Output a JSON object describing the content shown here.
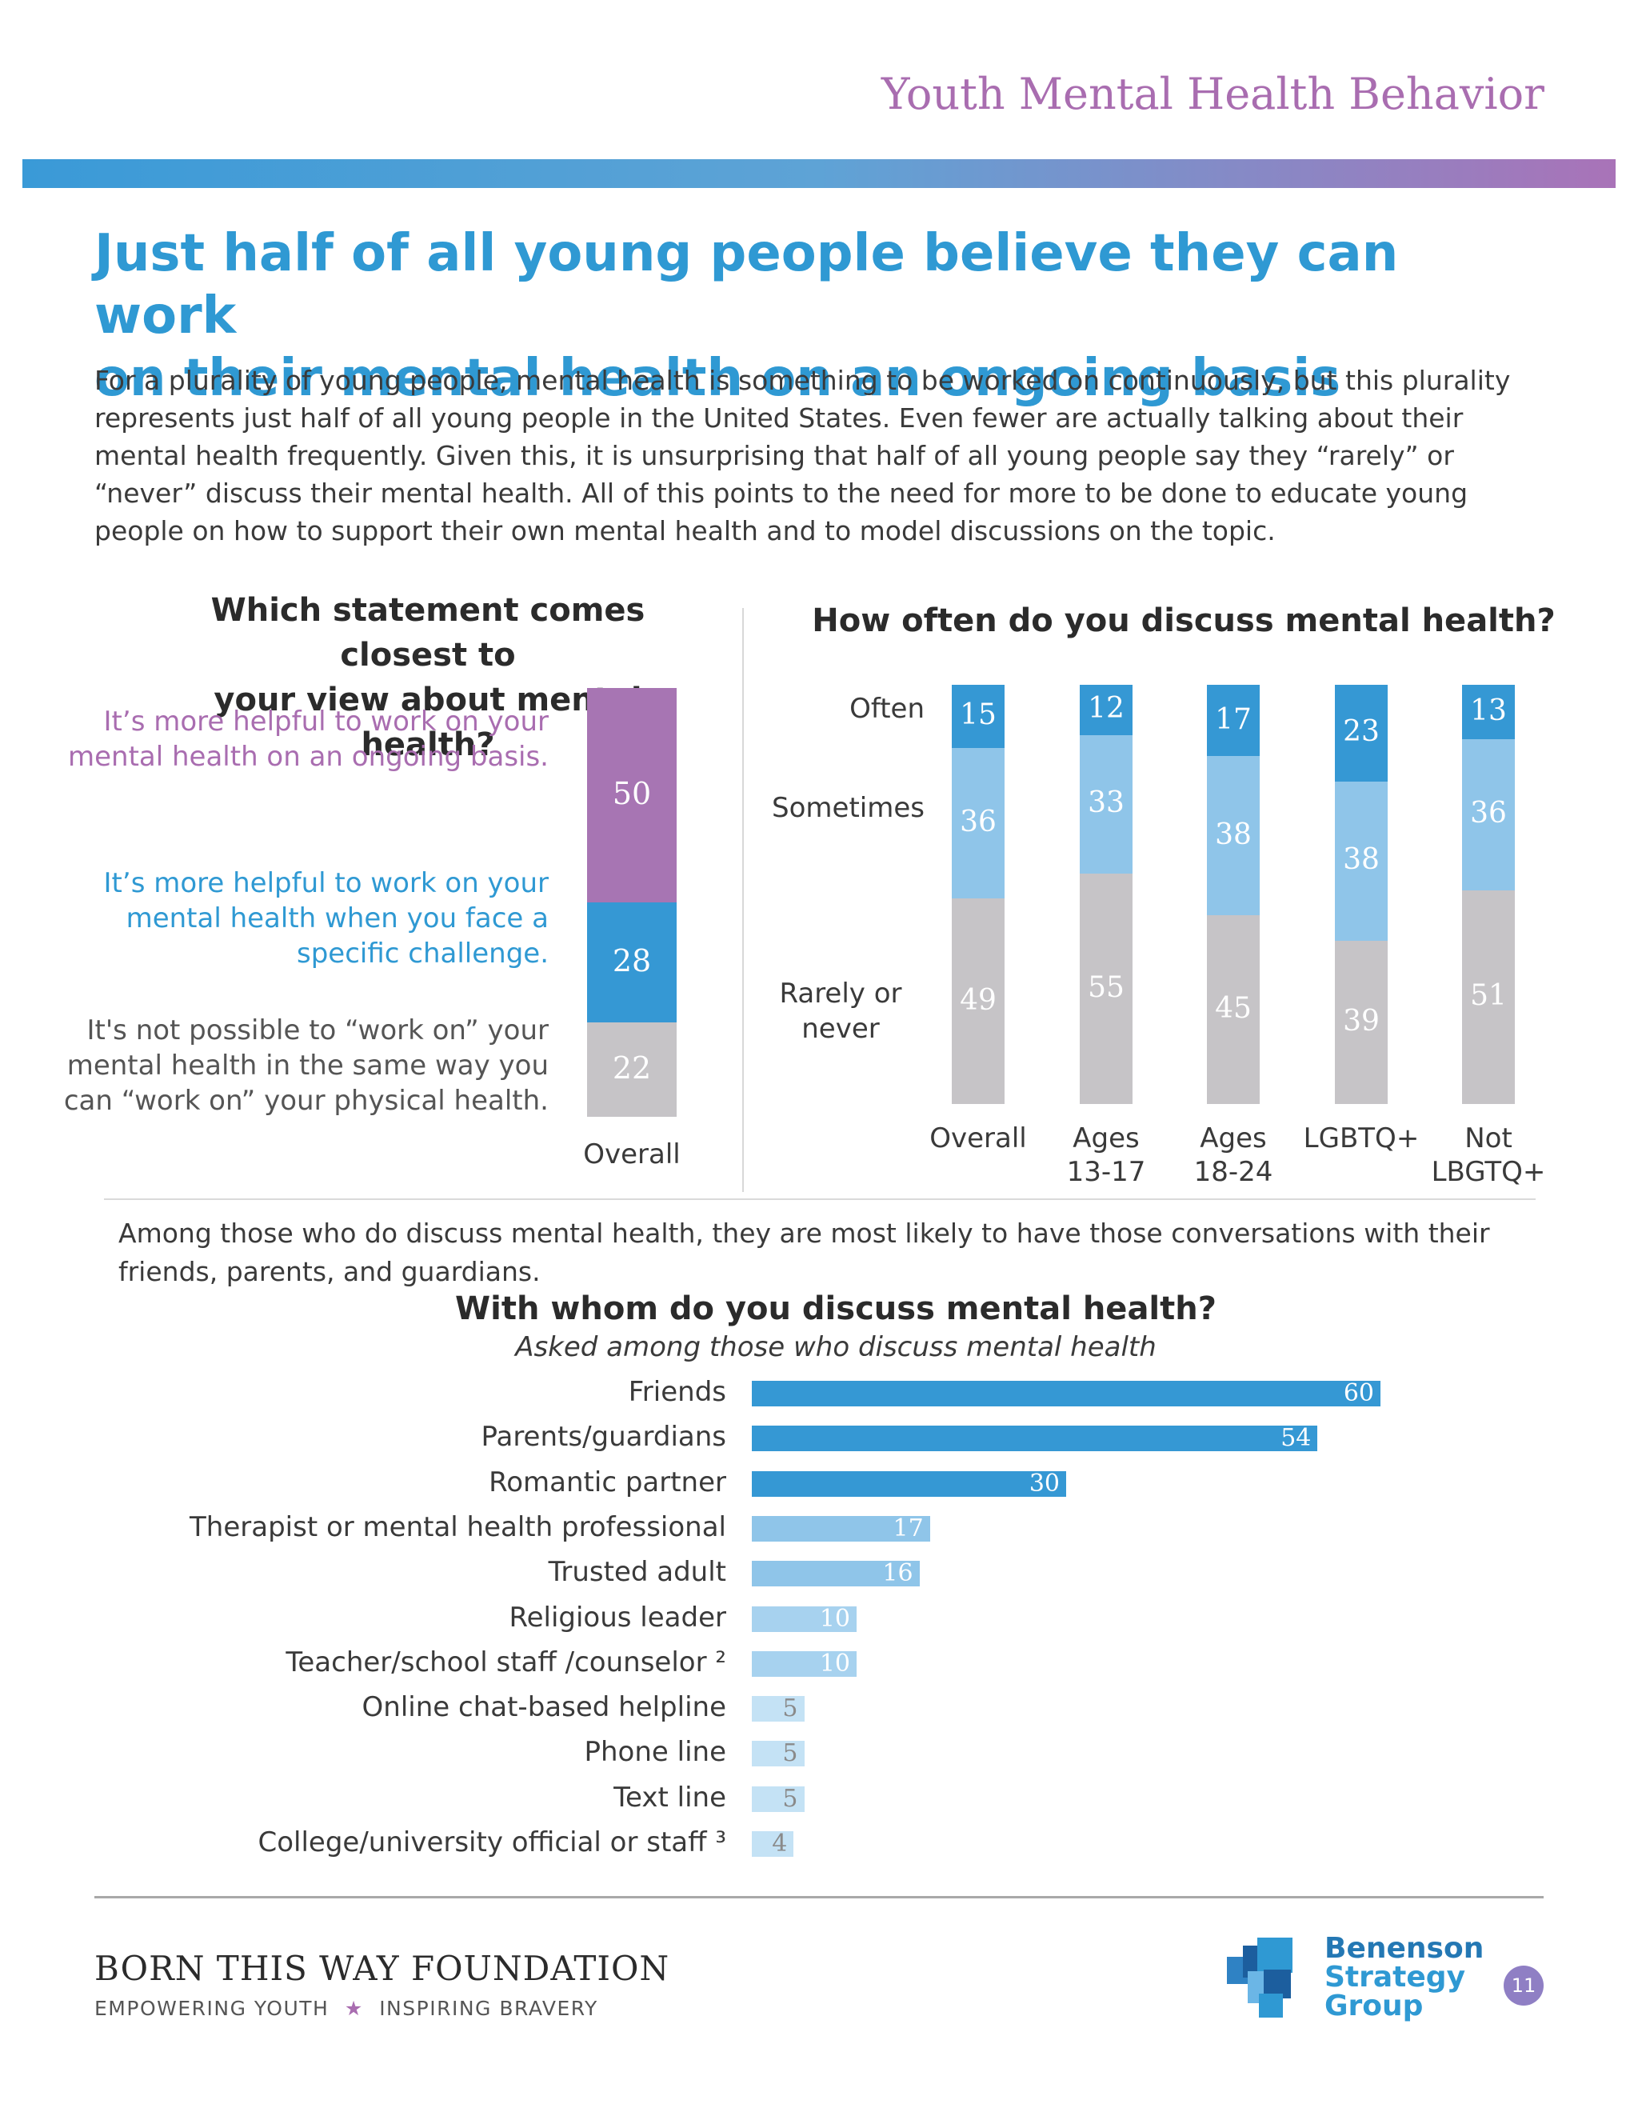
{
  "header": {
    "title": "Youth Mental Health Behavior"
  },
  "headline": {
    "line1": "Just half of all young people believe they can work",
    "line2": "on their mental health on an ongoing basis"
  },
  "intro": "For a plurality of young people, mental health is something to be worked on continuously, but this plurality represents just half of all young people in the United States. Even fewer are actually talking about their mental health frequently. Given this, it is unsurprising that half of all young people say they “rarely” or “never” discuss their mental health. All of this points to the need for more to be done to educate young people on how to support their own mental health and to model discussions on the topic.",
  "colors": {
    "purple": "#a775b3",
    "blue_dark": "#3598d4",
    "blue_light": "#8fc5e9",
    "blue_lighter": "#a7d2ef",
    "blue_faint": "#c4e2f5",
    "gray": "#c6c4c7",
    "accent_purple_text": "#a96db0",
    "accent_blue_text": "#2f99d3"
  },
  "chart_data": [
    {
      "type": "bar",
      "stacked": true,
      "title": "Which statement comes closest to your view about mental health?",
      "categories": [
        "Overall"
      ],
      "series": [
        {
          "name": "It’s more helpful to work on your mental health on an ongoing basis.",
          "values": [
            50
          ]
        },
        {
          "name": "It’s more helpful to work on your mental health when you face a specific challenge.",
          "values": [
            28
          ]
        },
        {
          "name": "It's not possible to “work on” your mental health in the same way you can “work on” your physical health.",
          "values": [
            22
          ]
        }
      ]
    },
    {
      "type": "bar",
      "stacked": true,
      "title": "How often do you discuss mental health?",
      "categories": [
        "Overall",
        "Ages 13-17",
        "Ages 18-24",
        "LGBTQ+",
        "Not LBGTQ+"
      ],
      "series": [
        {
          "name": "Often",
          "values": [
            15,
            12,
            17,
            23,
            13
          ]
        },
        {
          "name": "Sometimes",
          "values": [
            36,
            33,
            38,
            38,
            36
          ]
        },
        {
          "name": "Rarely or never",
          "values": [
            49,
            55,
            45,
            39,
            51
          ]
        }
      ]
    },
    {
      "type": "bar",
      "orientation": "horizontal",
      "title": "With whom do you discuss mental health?",
      "subtitle": "Asked among those who discuss mental health",
      "categories": [
        "Friends",
        "Parents/guardians",
        "Romantic partner",
        "Therapist or mental health professional",
        "Trusted adult",
        "Religious leader",
        "Teacher/school staff /counselor ²",
        "Online chat-based helpline",
        "Phone line",
        "Text line",
        "College/university official or staff ³"
      ],
      "values": [
        60,
        54,
        30,
        17,
        16,
        10,
        10,
        5,
        5,
        5,
        4
      ]
    }
  ],
  "chart1": {
    "title_line1": "Which statement comes closest to",
    "title_line2": "your view about mental health?",
    "statements": [
      "It’s more helpful to work on your mental health on an ongoing basis.",
      "It’s more helpful to work on your mental health when you face a specific challenge.",
      "It's not possible to “work on” your mental health in the same way you can “work on” your physical health."
    ],
    "values": [
      "50",
      "28",
      "22"
    ],
    "category": "Overall"
  },
  "chart2": {
    "title": "How often do you discuss mental health?",
    "row_labels": {
      "often": "Often",
      "sometimes": "Sometimes",
      "rarely1": "Rarely or",
      "rarely2": "never"
    },
    "categories": [
      {
        "line1": "Overall",
        "line2": ""
      },
      {
        "line1": "Ages",
        "line2": "13-17"
      },
      {
        "line1": "Ages",
        "line2": "18-24"
      },
      {
        "line1": "LGBTQ+",
        "line2": ""
      },
      {
        "line1": "Not",
        "line2": "LBGTQ+"
      }
    ]
  },
  "chart3": {
    "lead": "Among those who do discuss mental health, they are most likely to have those conversations with their friends, parents, and guardians.",
    "title": "With whom do you discuss mental health?",
    "subtitle": "Asked among those who discuss mental health"
  },
  "footer": {
    "org": "BORN THIS WAY FOUNDATION",
    "tag_left": "EMPOWERING YOUTH",
    "tag_star": "★",
    "tag_right": "INSPIRING BRAVERY",
    "logo_line1": "Benenson",
    "logo_line2": "Strategy",
    "logo_line3": "Group",
    "page": "11"
  }
}
